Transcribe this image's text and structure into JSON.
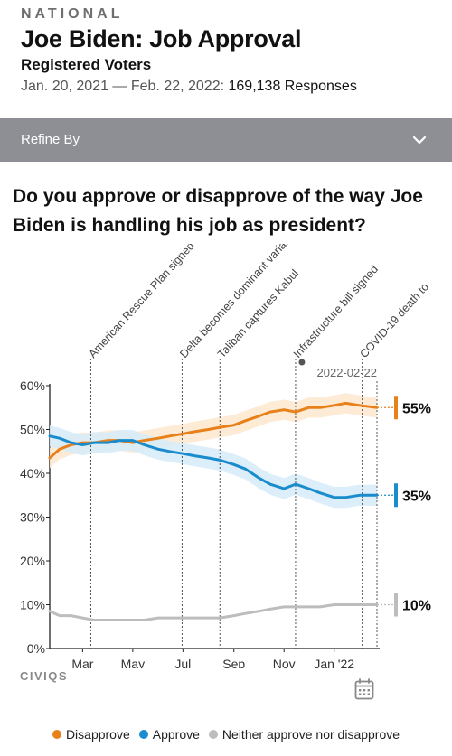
{
  "header": {
    "kicker": "NATIONAL",
    "title": "Joe Biden: Job Approval",
    "subtitle": "Registered Voters",
    "date_range": "Jan. 20, 2021 — Feb. 22, 2022:",
    "responses": "169,138 Responses"
  },
  "refine": {
    "label": "Refine By",
    "icon": "chevron-down-icon"
  },
  "question": "Do you approve or disapprove of the way Joe Biden is handling his job as president?",
  "logo": "CIVIQS",
  "colors": {
    "disapprove": "#e8811a",
    "approve": "#1a8ccd",
    "neither": "#bdbdbd"
  },
  "chart_data": {
    "type": "line",
    "x_start": "2021-01-20",
    "x_end": "2022-02-22",
    "x_ticks": [
      {
        "date": "2021-03-01",
        "label": "Mar"
      },
      {
        "date": "2021-05-01",
        "label": "May"
      },
      {
        "date": "2021-07-01",
        "label": "Jul"
      },
      {
        "date": "2021-09-01",
        "label": "Sep"
      },
      {
        "date": "2021-11-01",
        "label": "Nov"
      },
      {
        "date": "2022-01-01",
        "label": "Jan '22"
      }
    ],
    "y_ticks": [
      {
        "value": 0,
        "label": "0%"
      },
      {
        "value": 10,
        "label": "10%"
      },
      {
        "value": 20,
        "label": "20%"
      },
      {
        "value": 30,
        "label": "30%"
      },
      {
        "value": 40,
        "label": "40%"
      },
      {
        "value": 50,
        "label": "50%"
      },
      {
        "value": 60,
        "label": "60%"
      }
    ],
    "ylim": [
      0,
      60
    ],
    "grid": false,
    "events": [
      {
        "date": "2021-03-11",
        "label": "American Rescue Plan signed"
      },
      {
        "date": "2021-06-30",
        "label": "Delta becomes dominant variant"
      },
      {
        "date": "2021-08-15",
        "label": "Taliban captures Kabul"
      },
      {
        "date": "2021-11-15",
        "label": "Infrastructure bill signed"
      },
      {
        "date": "2022-02-04",
        "label": "COVID-19 death to"
      }
    ],
    "current_date_label": "2022-02-22",
    "series": [
      {
        "name": "Disapprove",
        "end_label": "55%",
        "points": [
          [
            "2021-01-20",
            43.5
          ],
          [
            "2021-02-01",
            45.5
          ],
          [
            "2021-02-15",
            46.5
          ],
          [
            "2021-03-01",
            47
          ],
          [
            "2021-03-15",
            47
          ],
          [
            "2021-04-01",
            47.5
          ],
          [
            "2021-04-15",
            47.5
          ],
          [
            "2021-05-01",
            47
          ],
          [
            "2021-05-15",
            47.5
          ],
          [
            "2021-06-01",
            48
          ],
          [
            "2021-06-15",
            48.5
          ],
          [
            "2021-07-01",
            49
          ],
          [
            "2021-07-15",
            49.5
          ],
          [
            "2021-08-01",
            50
          ],
          [
            "2021-08-15",
            50.5
          ],
          [
            "2021-09-01",
            51
          ],
          [
            "2021-09-15",
            52
          ],
          [
            "2021-10-01",
            53
          ],
          [
            "2021-10-15",
            54
          ],
          [
            "2021-11-01",
            54.5
          ],
          [
            "2021-11-15",
            54
          ],
          [
            "2021-12-01",
            55
          ],
          [
            "2021-12-15",
            55
          ],
          [
            "2022-01-01",
            55.5
          ],
          [
            "2022-01-15",
            56
          ],
          [
            "2022-02-01",
            55.5
          ],
          [
            "2022-02-22",
            55
          ]
        ]
      },
      {
        "name": "Approve",
        "end_label": "35%",
        "points": [
          [
            "2021-01-20",
            48.5
          ],
          [
            "2021-02-01",
            48
          ],
          [
            "2021-02-15",
            47
          ],
          [
            "2021-03-01",
            46.5
          ],
          [
            "2021-03-15",
            47
          ],
          [
            "2021-04-01",
            47
          ],
          [
            "2021-04-15",
            47.5
          ],
          [
            "2021-05-01",
            47.5
          ],
          [
            "2021-05-15",
            46.5
          ],
          [
            "2021-06-01",
            45.5
          ],
          [
            "2021-06-15",
            45
          ],
          [
            "2021-07-01",
            44.5
          ],
          [
            "2021-07-15",
            44
          ],
          [
            "2021-08-01",
            43.5
          ],
          [
            "2021-08-15",
            43
          ],
          [
            "2021-09-01",
            42
          ],
          [
            "2021-09-15",
            41
          ],
          [
            "2021-10-01",
            39
          ],
          [
            "2021-10-15",
            37.5
          ],
          [
            "2021-11-01",
            36.5
          ],
          [
            "2021-11-15",
            37.5
          ],
          [
            "2021-12-01",
            36.5
          ],
          [
            "2021-12-15",
            35.5
          ],
          [
            "2022-01-01",
            34.5
          ],
          [
            "2022-01-15",
            34.5
          ],
          [
            "2022-02-01",
            35
          ],
          [
            "2022-02-22",
            35
          ]
        ]
      },
      {
        "name": "Neither approve nor disapprove",
        "end_label": "10%",
        "points": [
          [
            "2021-01-20",
            8.5
          ],
          [
            "2021-02-01",
            7.5
          ],
          [
            "2021-02-15",
            7.5
          ],
          [
            "2021-03-01",
            7
          ],
          [
            "2021-03-15",
            6.5
          ],
          [
            "2021-04-01",
            6.5
          ],
          [
            "2021-04-15",
            6.5
          ],
          [
            "2021-05-01",
            6.5
          ],
          [
            "2021-05-15",
            6.5
          ],
          [
            "2021-06-01",
            7
          ],
          [
            "2021-06-15",
            7
          ],
          [
            "2021-07-01",
            7
          ],
          [
            "2021-07-15",
            7
          ],
          [
            "2021-08-01",
            7
          ],
          [
            "2021-08-15",
            7
          ],
          [
            "2021-09-01",
            7.5
          ],
          [
            "2021-09-15",
            8
          ],
          [
            "2021-10-01",
            8.5
          ],
          [
            "2021-10-15",
            9
          ],
          [
            "2021-11-01",
            9.5
          ],
          [
            "2021-11-15",
            9.5
          ],
          [
            "2021-12-01",
            9.5
          ],
          [
            "2021-12-15",
            9.5
          ],
          [
            "2022-01-01",
            10
          ],
          [
            "2022-01-15",
            10
          ],
          [
            "2022-02-01",
            10
          ],
          [
            "2022-02-22",
            10
          ]
        ]
      }
    ],
    "legend": {
      "placement": "bottom",
      "items": [
        "Disapprove",
        "Approve",
        "Neither approve nor disapprove"
      ]
    }
  }
}
